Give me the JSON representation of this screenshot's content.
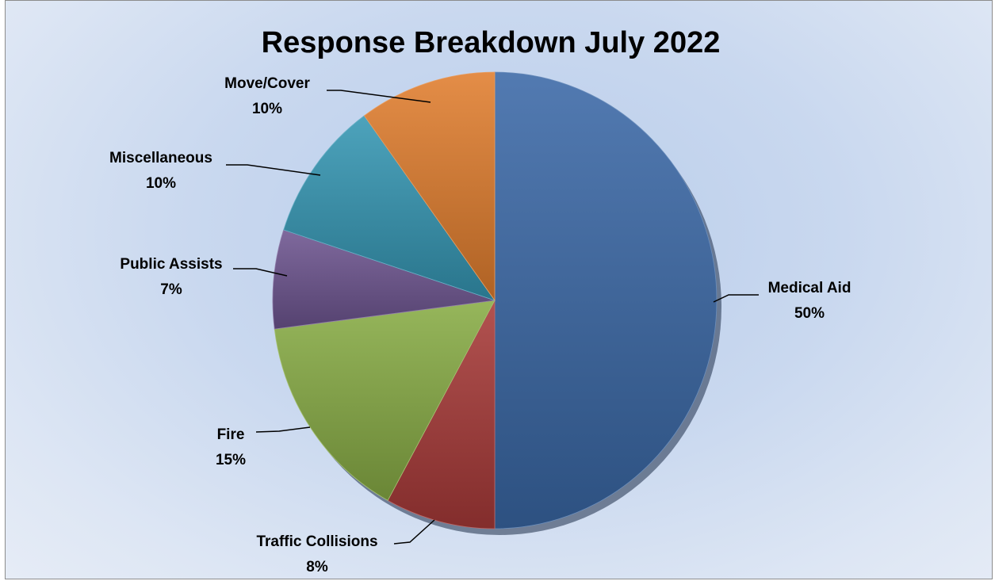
{
  "chart_data": {
    "type": "pie",
    "title": "Response Breakdown July 2022",
    "legend": "none",
    "slices": [
      {
        "label": "Medical Aid",
        "value": 50,
        "value_label": "50%",
        "color": "#3a68a6"
      },
      {
        "label": "Traffic Collisions",
        "value": 8,
        "value_label": "8%",
        "color": "#a83a38"
      },
      {
        "label": "Fire",
        "value": 15,
        "value_label": "15%",
        "color": "#88ac45"
      },
      {
        "label": "Public Assists",
        "value": 7,
        "value_label": "7%",
        "color": "#6d5490"
      },
      {
        "label": "Miscellaneous",
        "value": 10,
        "value_label": "10%",
        "color": "#3596b3"
      },
      {
        "label": "Move/Cover",
        "value": 10,
        "value_label": "10%",
        "color": "#e07d2e"
      }
    ]
  }
}
